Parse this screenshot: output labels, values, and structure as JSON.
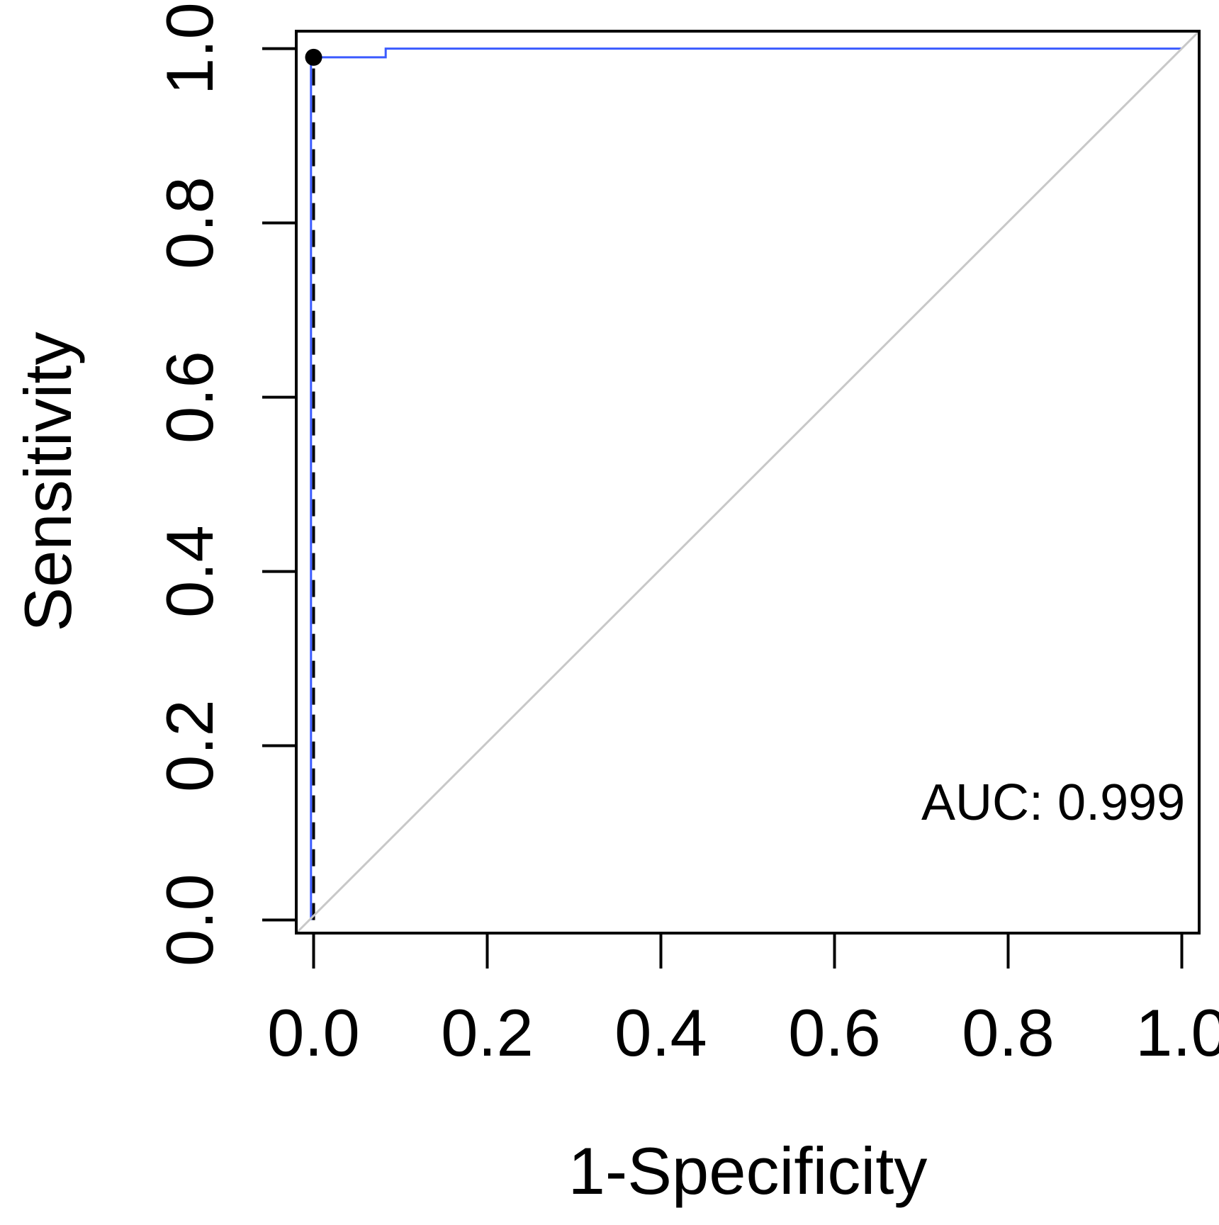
{
  "chart_data": {
    "type": "line",
    "title": "",
    "xlabel": "1-Specificity",
    "ylabel": "Sensitivity",
    "xlim": [
      -0.02,
      1.02
    ],
    "ylim": [
      -0.015,
      1.02
    ],
    "x_ticks": [
      0.0,
      0.2,
      0.4,
      0.6,
      0.8,
      1.0
    ],
    "x_tick_labels": [
      "0.0",
      "0.2",
      "0.4",
      "0.6",
      "0.8",
      "1.0"
    ],
    "y_ticks": [
      0.0,
      0.2,
      0.4,
      0.6,
      0.8,
      1.0
    ],
    "y_tick_labels": [
      "0.0",
      "0.2",
      "0.4",
      "0.6",
      "0.8",
      "1.0"
    ],
    "grid": false,
    "legend": "none",
    "series": [
      {
        "kind": "roc-curve",
        "color": "#3b5bff",
        "points": [
          [
            -0.003,
            0.0
          ],
          [
            -0.003,
            0.99
          ],
          [
            0.083,
            0.99
          ],
          [
            0.083,
            1.0
          ],
          [
            1.0,
            1.0
          ]
        ]
      },
      {
        "kind": "dashed-reference",
        "color": "#000000",
        "points": [
          [
            0.0,
            0.0
          ],
          [
            0.0,
            0.99
          ]
        ]
      },
      {
        "kind": "diagonal",
        "color": "#c8c8c8",
        "points": [
          [
            -0.02,
            -0.015
          ],
          [
            1.02,
            1.02
          ]
        ]
      }
    ],
    "highlight_point": {
      "x": 0.0,
      "y": 0.99,
      "color": "#000000"
    },
    "annotations": [
      {
        "text": "AUC: 0.999",
        "x": 0.7,
        "y": 0.115
      }
    ]
  }
}
